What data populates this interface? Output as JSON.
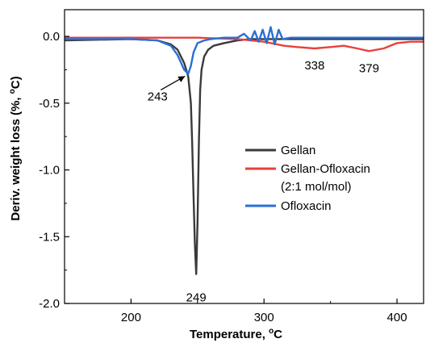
{
  "chart_data": {
    "type": "line",
    "xlabel": "Temperature, ",
    "xlabel_unit": "C",
    "ylabel": "Deriv. weight loss (%, ",
    "ylabel_unit": "C)",
    "degree_symbol": "o",
    "xlim": [
      150,
      420
    ],
    "ylim": [
      -2.0,
      0.2
    ],
    "xticks": [
      200,
      300,
      400
    ],
    "yticks": [
      0.0,
      -0.5,
      -1.0,
      -1.5,
      -2.0
    ],
    "ytick_labels": [
      "0.0",
      "-0.5",
      "-1.0",
      "-1.5",
      "-2.0"
    ],
    "legend_position": "center-right",
    "series": [
      {
        "name": "Gellan",
        "color": "#3a3a3a",
        "x": [
          150,
          200,
          220,
          230,
          235,
          240,
          243,
          245,
          246,
          247,
          248,
          249,
          250,
          251,
          252,
          253,
          255,
          258,
          262,
          270,
          280,
          290,
          300,
          310,
          320,
          350,
          380,
          400,
          420
        ],
        "y": [
          -0.03,
          -0.02,
          -0.03,
          -0.06,
          -0.1,
          -0.2,
          -0.3,
          -0.5,
          -0.8,
          -1.2,
          -1.55,
          -1.78,
          -1.4,
          -0.8,
          -0.4,
          -0.25,
          -0.15,
          -0.1,
          -0.07,
          -0.05,
          -0.03,
          -0.02,
          -0.02,
          -0.02,
          -0.02,
          -0.02,
          -0.02,
          -0.02,
          -0.02
        ]
      },
      {
        "name": "Gellan-Ofloxacin",
        "name_line2": "(2:1 mol/mol)",
        "color": "#e8413c",
        "x": [
          150,
          200,
          250,
          280,
          300,
          315,
          325,
          338,
          350,
          360,
          370,
          379,
          390,
          400,
          410,
          420
        ],
        "y": [
          -0.01,
          -0.01,
          -0.01,
          -0.02,
          -0.04,
          -0.07,
          -0.08,
          -0.09,
          -0.08,
          -0.07,
          -0.09,
          -0.11,
          -0.09,
          -0.05,
          -0.04,
          -0.04
        ]
      },
      {
        "name": "Ofloxacin",
        "color": "#2a6fd6",
        "x": [
          150,
          200,
          220,
          230,
          235,
          240,
          243,
          245,
          247,
          250,
          255,
          260,
          270,
          280,
          285,
          290,
          293,
          296,
          299,
          302,
          305,
          308,
          311,
          314,
          320,
          340,
          380,
          420
        ],
        "y": [
          -0.02,
          -0.02,
          -0.03,
          -0.07,
          -0.14,
          -0.25,
          -0.28,
          -0.22,
          -0.12,
          -0.05,
          -0.03,
          -0.02,
          -0.01,
          -0.01,
          0.02,
          -0.03,
          0.04,
          -0.04,
          0.05,
          -0.05,
          0.07,
          -0.06,
          0.05,
          -0.02,
          -0.01,
          -0.01,
          -0.01,
          -0.01
        ]
      }
    ],
    "annotations": [
      {
        "text": "243",
        "x": 243,
        "y": -0.28,
        "arrow": true
      },
      {
        "text": "249",
        "x": 249,
        "y": -1.78
      },
      {
        "text": "338",
        "x": 338,
        "y": -0.09
      },
      {
        "text": "379",
        "x": 379,
        "y": -0.11
      }
    ]
  }
}
